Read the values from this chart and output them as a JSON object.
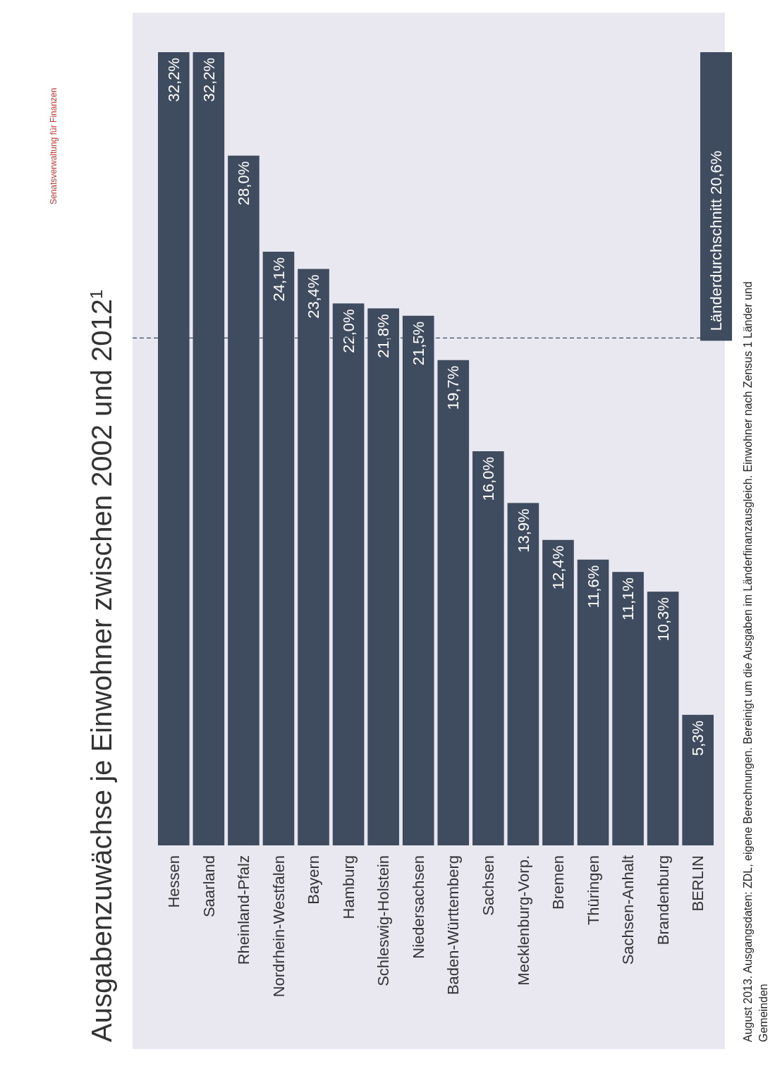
{
  "chart_data": {
    "type": "bar",
    "title": "Ausgabenzuwächse je Einwohner zwischen 2002 und 2012$^{1}$",
    "categories": [
      "Hessen",
      "Saarland",
      "Rheinland-Pfalz",
      "Nordrhein-Westfalen",
      "Bayern",
      "Hamburg",
      "Schleswig-Holstein",
      "Niedersachsen",
      "Baden-Württemberg",
      "Sachsen",
      "Mecklenburg-Vorp.",
      "Bremen",
      "Thüringen",
      "Sachsen-Anhalt",
      "Brandenburg",
      "BERLIN"
    ],
    "values": [
      32.2,
      32.2,
      28.0,
      24.1,
      23.4,
      22.0,
      21.8,
      21.5,
      19.7,
      16.0,
      13.9,
      12.4,
      11.6,
      11.1,
      10.3,
      5.3
    ],
    "value_labels": [
      "32,2%",
      "32,2%",
      "28,0%",
      "24,1%",
      "23,4%",
      "22,0%",
      "21,8%",
      "21,5%",
      "19,7%",
      "16,0%",
      "13,9%",
      "12,4%",
      "11,6%",
      "11,1%",
      "10,3%",
      "5,3%"
    ],
    "color": "#3f4b5f",
    "ref_lines": [
      {
        "axis": "y",
        "value": 20.6,
        "label": "Länderdurchschnitt  20,6%",
        "color": "#3f4b5f",
        "line_style": "dashed"
      }
    ],
    "annotations": [
      "August 2013. Ausgangsdaten: ZDL, eigene Berechnungen. Bereinigt um die Ausgaben im Länderfinanzausgleich. Einwohner nach Zensus   1 Länder und",
      "Gemeinden",
      "Senatsverwaltung für Finanzen"
    ]
  }
}
